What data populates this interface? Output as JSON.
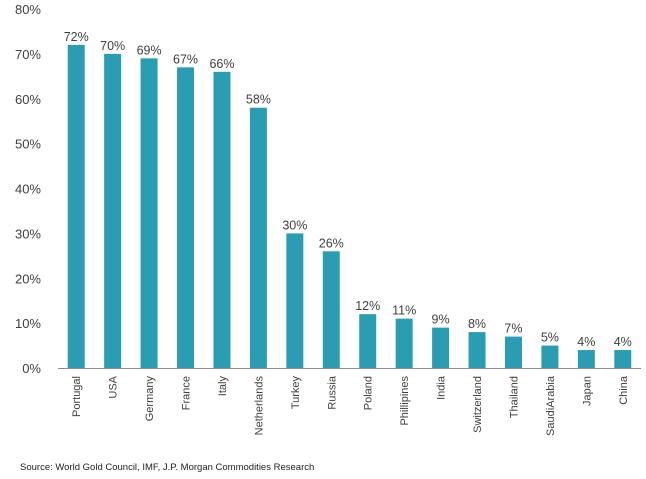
{
  "chart_data": {
    "type": "bar",
    "title": "",
    "xlabel": "",
    "ylabel": "",
    "ylim": [
      0,
      80
    ],
    "yticks": [
      "0%",
      "10%",
      "20%",
      "30%",
      "40%",
      "50%",
      "60%",
      "70%",
      "80%"
    ],
    "grid": false,
    "categories": [
      "Portugal",
      "USA",
      "Germany",
      "France",
      "Italy",
      "Netherlands",
      "Turkey",
      "Russia",
      "Poland",
      "Phillipines",
      "India",
      "Switzerland",
      "Thailand",
      "SaudiArabia",
      "Japan",
      "China"
    ],
    "values": [
      72,
      70,
      69,
      67,
      66,
      58,
      30,
      26,
      12,
      11,
      9,
      8,
      7,
      5,
      4,
      4
    ],
    "data_labels": [
      "72%",
      "70%",
      "69%",
      "67%",
      "66%",
      "58%",
      "30%",
      "26%",
      "12%",
      "11%",
      "9%",
      "8%",
      "7%",
      "5%",
      "4%",
      "4%"
    ],
    "bar_color": "#2b9db3",
    "axis_color": "#8c8c8c"
  },
  "source": "Source: World Gold Council, IMF, J.P. Morgan Commodities Research"
}
